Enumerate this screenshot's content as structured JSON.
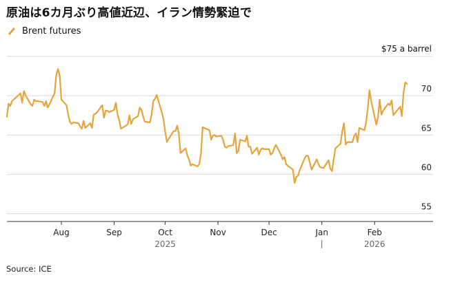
{
  "chart_data": {
    "type": "line",
    "title": "原油は6カ月ぶり高値近辺、イラン情勢緊迫で",
    "series": [
      {
        "name": "Brent futures",
        "color": "#e8a23a",
        "points": [
          [
            "2025-06-30",
            67.3
          ],
          [
            "2025-07-01",
            69.0
          ],
          [
            "2025-07-02",
            68.7
          ],
          [
            "2025-07-03",
            69.3
          ],
          [
            "2025-07-07",
            70.1
          ],
          [
            "2025-07-08",
            70.3
          ],
          [
            "2025-07-09",
            69.1
          ],
          [
            "2025-07-10",
            70.6
          ],
          [
            "2025-07-11",
            70.0
          ],
          [
            "2025-07-14",
            68.9
          ],
          [
            "2025-07-15",
            68.7
          ],
          [
            "2025-07-16",
            69.5
          ],
          [
            "2025-07-17",
            69.3
          ],
          [
            "2025-07-18",
            69.3
          ],
          [
            "2025-07-21",
            69.2
          ],
          [
            "2025-07-22",
            68.7
          ],
          [
            "2025-07-23",
            69.3
          ],
          [
            "2025-07-24",
            68.5
          ],
          [
            "2025-07-25",
            68.9
          ],
          [
            "2025-07-28",
            70.3
          ],
          [
            "2025-07-29",
            72.6
          ],
          [
            "2025-07-30",
            73.4
          ],
          [
            "2025-07-31",
            72.6
          ],
          [
            "2025-08-01",
            69.5
          ],
          [
            "2025-08-04",
            68.8
          ],
          [
            "2025-08-05",
            67.6
          ],
          [
            "2025-08-06",
            66.7
          ],
          [
            "2025-08-07",
            66.4
          ],
          [
            "2025-08-08",
            66.6
          ],
          [
            "2025-08-11",
            66.5
          ],
          [
            "2025-08-12",
            66.1
          ],
          [
            "2025-08-13",
            65.8
          ],
          [
            "2025-08-14",
            66.8
          ],
          [
            "2025-08-15",
            65.9
          ],
          [
            "2025-08-18",
            66.5
          ],
          [
            "2025-08-19",
            65.9
          ],
          [
            "2025-08-20",
            67.6
          ],
          [
            "2025-08-21",
            67.7
          ],
          [
            "2025-08-22",
            67.9
          ],
          [
            "2025-08-25",
            68.8
          ],
          [
            "2025-08-26",
            67.2
          ],
          [
            "2025-08-27",
            68.1
          ],
          [
            "2025-08-28",
            68.1
          ],
          [
            "2025-08-29",
            67.9
          ],
          [
            "2025-09-01",
            68.2
          ],
          [
            "2025-09-02",
            69.1
          ],
          [
            "2025-09-03",
            67.6
          ],
          [
            "2025-09-04",
            66.9
          ],
          [
            "2025-09-05",
            65.8
          ],
          [
            "2025-09-08",
            66.2
          ],
          [
            "2025-09-09",
            66.4
          ],
          [
            "2025-09-10",
            67.5
          ],
          [
            "2025-09-11",
            66.4
          ],
          [
            "2025-09-12",
            67.0
          ],
          [
            "2025-09-15",
            67.4
          ],
          [
            "2025-09-16",
            68.5
          ],
          [
            "2025-09-17",
            68.2
          ],
          [
            "2025-09-18",
            67.4
          ],
          [
            "2025-09-19",
            66.7
          ],
          [
            "2025-09-22",
            66.6
          ],
          [
            "2025-09-23",
            67.6
          ],
          [
            "2025-09-24",
            69.3
          ],
          [
            "2025-09-25",
            69.6
          ],
          [
            "2025-09-26",
            70.1
          ],
          [
            "2025-09-29",
            67.9
          ],
          [
            "2025-09-30",
            67.0
          ],
          [
            "2025-10-01",
            65.4
          ],
          [
            "2025-10-02",
            64.1
          ],
          [
            "2025-10-03",
            64.5
          ],
          [
            "2025-10-06",
            65.5
          ],
          [
            "2025-10-07",
            65.5
          ],
          [
            "2025-10-08",
            66.2
          ],
          [
            "2025-10-09",
            65.2
          ],
          [
            "2025-10-10",
            62.7
          ],
          [
            "2025-10-13",
            63.3
          ],
          [
            "2025-10-14",
            62.4
          ],
          [
            "2025-10-15",
            61.9
          ],
          [
            "2025-10-16",
            61.1
          ],
          [
            "2025-10-17",
            61.3
          ],
          [
            "2025-10-20",
            61.0
          ],
          [
            "2025-10-21",
            61.3
          ],
          [
            "2025-10-22",
            62.6
          ],
          [
            "2025-10-23",
            65.99
          ],
          [
            "2025-10-24",
            65.9
          ],
          [
            "2025-10-27",
            65.6
          ],
          [
            "2025-10-28",
            64.4
          ],
          [
            "2025-10-29",
            64.9
          ],
          [
            "2025-10-30",
            65.0
          ],
          [
            "2025-10-31",
            64.8
          ],
          [
            "2025-11-03",
            64.9
          ],
          [
            "2025-11-04",
            64.4
          ],
          [
            "2025-11-05",
            63.5
          ],
          [
            "2025-11-06",
            63.4
          ],
          [
            "2025-11-07",
            63.6
          ],
          [
            "2025-11-10",
            63.7
          ],
          [
            "2025-11-11",
            65.2
          ],
          [
            "2025-11-12",
            62.7
          ],
          [
            "2025-11-13",
            63.0
          ],
          [
            "2025-11-14",
            64.4
          ],
          [
            "2025-11-17",
            64.2
          ],
          [
            "2025-11-18",
            64.9
          ],
          [
            "2025-11-19",
            63.5
          ],
          [
            "2025-11-20",
            63.5
          ],
          [
            "2025-11-21",
            62.6
          ],
          [
            "2025-11-24",
            63.4
          ],
          [
            "2025-11-25",
            62.5
          ],
          [
            "2025-11-26",
            63.1
          ],
          [
            "2025-11-27",
            63.3
          ],
          [
            "2025-11-28",
            63.2
          ],
          [
            "2025-12-01",
            63.2
          ],
          [
            "2025-12-02",
            62.5
          ],
          [
            "2025-12-03",
            62.7
          ],
          [
            "2025-12-04",
            63.3
          ],
          [
            "2025-12-05",
            63.75
          ],
          [
            "2025-12-08",
            62.5
          ],
          [
            "2025-12-09",
            61.9
          ],
          [
            "2025-12-10",
            62.2
          ],
          [
            "2025-12-11",
            61.3
          ],
          [
            "2025-12-12",
            61.1
          ],
          [
            "2025-12-15",
            60.6
          ],
          [
            "2025-12-16",
            58.9
          ],
          [
            "2025-12-17",
            59.7
          ],
          [
            "2025-12-18",
            59.8
          ],
          [
            "2025-12-19",
            60.5
          ],
          [
            "2025-12-22",
            62.1
          ],
          [
            "2025-12-23",
            62.4
          ],
          [
            "2025-12-24",
            62.3
          ],
          [
            "2025-12-26",
            60.6
          ],
          [
            "2025-12-29",
            61.9
          ],
          [
            "2025-12-30",
            61.3
          ],
          [
            "2025-12-31",
            60.9
          ],
          [
            "2026-01-02",
            60.8
          ],
          [
            "2026-01-05",
            61.8
          ],
          [
            "2026-01-06",
            60.7
          ],
          [
            "2026-01-07",
            60.4
          ],
          [
            "2026-01-08",
            61.99
          ],
          [
            "2026-01-09",
            63.3
          ],
          [
            "2026-01-12",
            63.9
          ],
          [
            "2026-01-13",
            65.5
          ],
          [
            "2026-01-14",
            66.5
          ],
          [
            "2026-01-15",
            63.8
          ],
          [
            "2026-01-16",
            64.1
          ],
          [
            "2026-01-19",
            64.1
          ],
          [
            "2026-01-20",
            64.9
          ],
          [
            "2026-01-21",
            65.2
          ],
          [
            "2026-01-22",
            64.1
          ],
          [
            "2026-01-23",
            65.9
          ],
          [
            "2026-01-26",
            65.6
          ],
          [
            "2026-01-27",
            66.6
          ],
          [
            "2026-01-28",
            68.4
          ],
          [
            "2026-01-29",
            70.7
          ],
          [
            "2026-01-30",
            69.3
          ],
          [
            "2026-02-02",
            66.3
          ],
          [
            "2026-02-03",
            67.3
          ],
          [
            "2026-02-04",
            69.5
          ],
          [
            "2026-02-05",
            67.6
          ],
          [
            "2026-02-06",
            68.1
          ],
          [
            "2026-02-09",
            69.0
          ],
          [
            "2026-02-10",
            68.8
          ],
          [
            "2026-02-11",
            69.4
          ],
          [
            "2026-02-12",
            67.5
          ],
          [
            "2026-02-13",
            67.8
          ],
          [
            "2026-02-16",
            68.6
          ],
          [
            "2026-02-17",
            67.4
          ],
          [
            "2026-02-18",
            70.4
          ],
          [
            "2026-02-19",
            71.7
          ],
          [
            "2026-02-20",
            71.5
          ]
        ]
      }
    ],
    "y_unit_label": "$75 a barrel",
    "yticks": [
      55,
      60,
      65,
      70
    ],
    "ylim": [
      54,
      75
    ],
    "xlim": [
      "2025-06-30",
      "2026-02-24"
    ],
    "xticks": [
      {
        "date": "2025-08-01",
        "label": "Aug"
      },
      {
        "date": "2025-09-01",
        "label": "Sep"
      },
      {
        "date": "2025-10-01",
        "label": "Oct"
      },
      {
        "date": "2025-11-01",
        "label": "Nov"
      },
      {
        "date": "2025-12-01",
        "label": "Dec"
      },
      {
        "date": "2026-01-01",
        "label": "Jan"
      },
      {
        "date": "2026-02-01",
        "label": "Feb"
      }
    ],
    "year_labels": [
      {
        "date": "2025-10-01",
        "label": "2025"
      },
      {
        "date": "2026-02-01",
        "label": "2026"
      }
    ],
    "year_divider": "2026-01-01",
    "grid": true,
    "legend_position": "top-left",
    "source": "Source: ICE"
  }
}
